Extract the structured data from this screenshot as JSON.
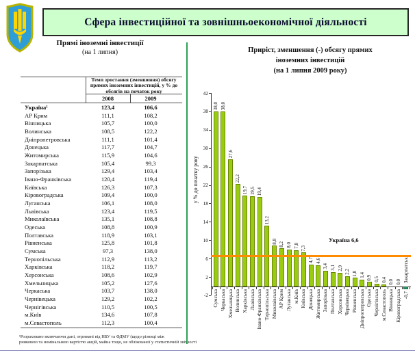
{
  "header": {
    "banner_title": "Сфера інвестиційної та зовнішньоекономічної діяльності",
    "banner_bg": "#ccffcc",
    "emblem_icon": "ukraine-trident-emblem"
  },
  "table_panel": {
    "title": "Прямі іноземні інвестиції",
    "subtitle": "(на 1 липня)",
    "header": {
      "merged": "Темп зростання (зменшення) обсягу прямих іноземних інвестицій, у % до обсягів на початок року",
      "col_2008": "2008",
      "col_2009": "2009"
    },
    "rows": [
      {
        "name": "Україна¹",
        "v2008": "123,4",
        "v2009": "106,6",
        "bold": true
      },
      {
        "name": "АР Крим",
        "v2008": "111,1",
        "v2009": "108,2"
      },
      {
        "name": "Вінницька",
        "v2008": "105,7",
        "v2009": "100,0"
      },
      {
        "name": "Волинська",
        "v2008": "108,5",
        "v2009": "122,2"
      },
      {
        "name": "Дніпропетровська",
        "v2008": "111,1",
        "v2009": "101,4"
      },
      {
        "name": "Донецька",
        "v2008": "117,7",
        "v2009": "104,7"
      },
      {
        "name": "Житомирська",
        "v2008": "115,9",
        "v2009": "104,6"
      },
      {
        "name": "Закарпатська",
        "v2008": "105,4",
        "v2009": "99,3"
      },
      {
        "name": "Запорізька",
        "v2008": "129,4",
        "v2009": "103,4"
      },
      {
        "name": "Івано-Франківська",
        "v2008": "120,4",
        "v2009": "119,4"
      },
      {
        "name": "Київська",
        "v2008": "126,3",
        "v2009": "107,3"
      },
      {
        "name": "Кіровоградська",
        "v2008": "109,4",
        "v2009": "100,0"
      },
      {
        "name": "Луганська",
        "v2008": "106,1",
        "v2009": "108,0"
      },
      {
        "name": "Львівська",
        "v2008": "123,4",
        "v2009": "119,5"
      },
      {
        "name": "Миколаївська",
        "v2008": "135,1",
        "v2009": "108,8"
      },
      {
        "name": "Одеська",
        "v2008": "108,8",
        "v2009": "100,9"
      },
      {
        "name": "Полтавська",
        "v2008": "118,9",
        "v2009": "103,1"
      },
      {
        "name": "Рівненська",
        "v2008": "125,8",
        "v2009": "101,8"
      },
      {
        "name": "Сумська",
        "v2008": "97,3",
        "v2009": "138,0"
      },
      {
        "name": "Тернопільська",
        "v2008": "112,9",
        "v2009": "113,2"
      },
      {
        "name": "Харківська",
        "v2008": "118,2",
        "v2009": "119,7"
      },
      {
        "name": "Херсонська",
        "v2008": "108,6",
        "v2009": "102,9"
      },
      {
        "name": "Хмельницька",
        "v2008": "105,2",
        "v2009": "127,6"
      },
      {
        "name": "Черкаська",
        "v2008": "103,7",
        "v2009": "138,0"
      },
      {
        "name": "Чернівецька",
        "v2008": "129,2",
        "v2009": "102,2"
      },
      {
        "name": "Чернігівська",
        "v2008": "110,5",
        "v2009": "100,5"
      },
      {
        "name": "м.Київ",
        "v2008": "134,6",
        "v2009": "107,8"
      },
      {
        "name": "м.Севастополь",
        "v2008": "112,3",
        "v2009": "100,4"
      }
    ],
    "footnote_line1": "¹Розраховано  включаючи дані, отримані від НБУ та ФДМУ (щодо різниці між",
    "footnote_line2": "ринковою та номінальною вартістю акцій, майна тощо, не облікованої у статистичній звітності"
  },
  "chart_panel": {
    "title_line1": "Приріст, зменшення (-) обсягу прямих",
    "title_line2": "іноземних інвестицій",
    "title_line3": "(на 1 липня 2009 року)",
    "y_axis_label": "у % до початку року",
    "ukraine_label": "Україна 6,6"
  },
  "chart_data": {
    "type": "bar",
    "title": "Приріст, зменшення (-) обсягу прямих іноземних інвестицій (на 1 липня 2009 року)",
    "xlabel": "",
    "ylabel": "у % до початку року",
    "ylim": [
      -2,
      42
    ],
    "yticks": [
      42,
      38,
      34,
      30,
      26,
      22,
      18,
      14,
      10,
      6,
      2,
      -2
    ],
    "grid": false,
    "legend": "none",
    "bar_color": "#99cc11",
    "negative_bar_color": "#2e9966",
    "reference_line": {
      "value": 6.6,
      "label": "Україна 6,6",
      "color": "#ff8c00"
    },
    "categories": [
      "Сумська",
      "Черкаська",
      "Хмельницька",
      "Волинська",
      "Харківська",
      "Львівська",
      "Івано-Франківська",
      "Тернопільська",
      "Миколаївська",
      "АР Крим",
      "Луганська",
      "м.Київ",
      "Київська",
      "Донецька",
      "Житомирська",
      "Запорізька",
      "Полтавська",
      "Херсонська",
      "Чернівецька",
      "Рівненська",
      "Дніпропетровська",
      "Одеська",
      "Чернігівська",
      "м.Севастополь",
      "Вінницька",
      "Кіровоградська",
      "Закарпатська"
    ],
    "values": [
      38.0,
      38.0,
      27.6,
      22.2,
      19.7,
      19.5,
      19.4,
      13.2,
      8.8,
      8.2,
      8.0,
      7.8,
      7.3,
      4.7,
      4.6,
      3.4,
      3.1,
      2.9,
      2.2,
      1.8,
      1.4,
      0.9,
      0.5,
      0.4,
      0.0,
      0.0,
      -0.7
    ],
    "value_labels": [
      "38,0",
      "38,0",
      "27,6",
      "22,2",
      "19,7",
      "19,5",
      "19,4",
      "13,2",
      "8,8",
      "8,2",
      "8,0",
      "7,8",
      "7,3",
      "4,7",
      "4,6",
      "3,4",
      "3,1",
      "2,9",
      "2,2",
      "1,8",
      "1,4",
      "0,9",
      "0,5",
      "0,4",
      "0,0",
      "0,0",
      "-0,7"
    ]
  }
}
